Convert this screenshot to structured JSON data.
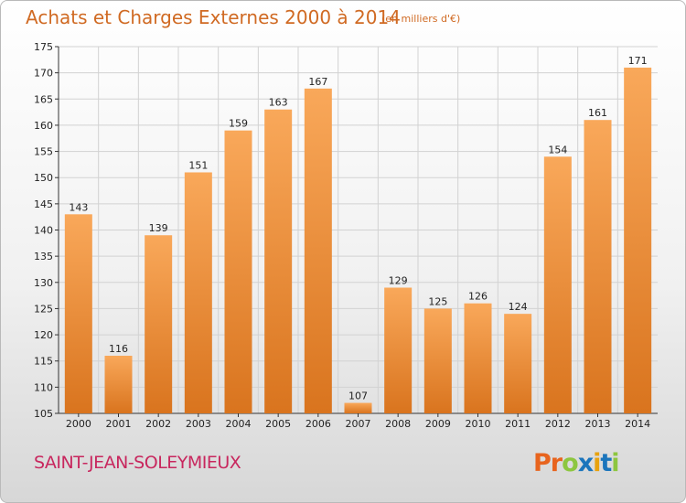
{
  "header": {
    "title": "Achats et Charges Externes 2000 à 2014",
    "unit": "(en milliers d'€)"
  },
  "footer": {
    "place": "SAINT-JEAN-SOLEYMIEUX",
    "logo_letters": [
      "P",
      "r",
      "o",
      "x",
      "i",
      "t",
      "i"
    ],
    "logo_colors": [
      "#e8641e",
      "#e8641e",
      "#8dc63f",
      "#1b75bc",
      "#e8a20e",
      "#1b75bc",
      "#8dc63f"
    ]
  },
  "colors": {
    "bar_light": "#f9a85a",
    "bar_dark": "#d9741e",
    "text": "#222222",
    "grid": "#d2d2d2"
  },
  "chart_data": {
    "type": "bar",
    "title": "Achats et Charges Externes 2000 à 2014",
    "subtitle": "(en milliers d'€)",
    "categories": [
      "2000",
      "2001",
      "2002",
      "2003",
      "2004",
      "2005",
      "2006",
      "2007",
      "2008",
      "2009",
      "2010",
      "2011",
      "2012",
      "2013",
      "2014"
    ],
    "values": [
      143,
      116,
      139,
      151,
      159,
      163,
      167,
      107,
      129,
      125,
      126,
      124,
      154,
      161,
      171
    ],
    "ylim": [
      105,
      175
    ],
    "yticks": [
      105,
      110,
      115,
      120,
      125,
      130,
      135,
      140,
      145,
      150,
      155,
      160,
      165,
      170,
      175
    ],
    "grid": true,
    "data_labels": true
  }
}
